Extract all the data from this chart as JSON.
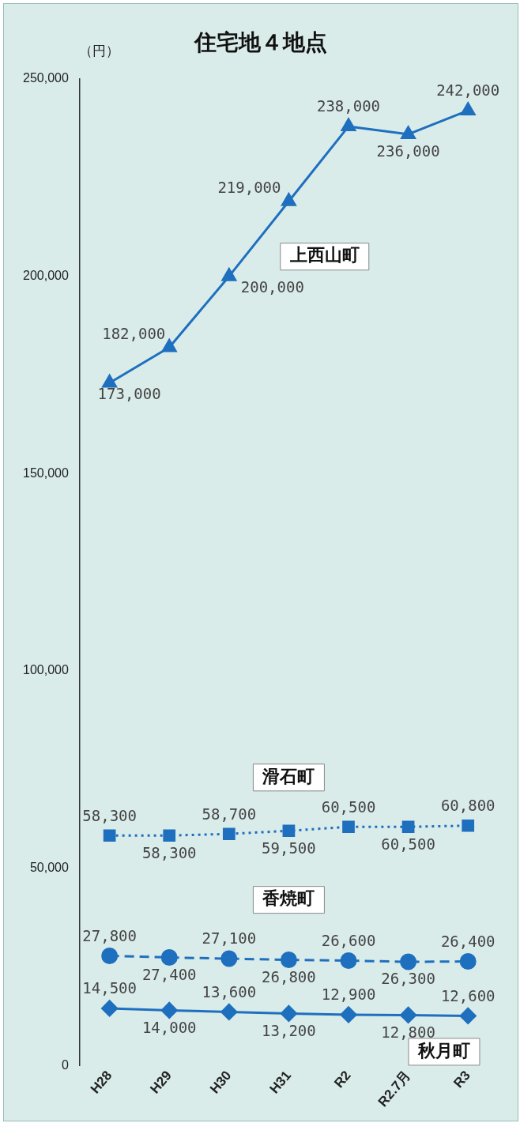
{
  "chart_data": {
    "type": "line",
    "title": "住宅地４地点",
    "ylabel": "（円）",
    "categories": [
      "H28",
      "H29",
      "H30",
      "H31",
      "R2",
      "R2.7月",
      "R3"
    ],
    "ylim": [
      0,
      250000
    ],
    "yticks": [
      {
        "value": 0,
        "label": "0"
      },
      {
        "value": 50000,
        "label": "50,000"
      },
      {
        "value": 100000,
        "label": "100,000"
      },
      {
        "value": 150000,
        "label": "150,000"
      },
      {
        "value": 200000,
        "label": "200,000"
      },
      {
        "value": 250000,
        "label": "250,000"
      }
    ],
    "grid": false,
    "legend": false,
    "series": [
      {
        "name": "上西山町",
        "color": "#1f6fbf",
        "marker": "triangle",
        "line_style": "solid",
        "values": [
          173000,
          182000,
          200000,
          219000,
          238000,
          236000,
          242000
        ],
        "value_labels": [
          "173,000",
          "182,000",
          "200,000",
          "219,000",
          "238,000",
          "236,000",
          "242,000"
        ]
      },
      {
        "name": "滑石町",
        "color": "#1f6fbf",
        "marker": "square",
        "line_style": "dotted",
        "values": [
          58300,
          58300,
          58700,
          59500,
          60500,
          60500,
          60800
        ],
        "value_labels": [
          "58,300",
          "58,300",
          "58,700",
          "59,500",
          "60,500",
          "60,500",
          "60,800"
        ]
      },
      {
        "name": "香焼町",
        "color": "#1f6fbf",
        "marker": "circle",
        "line_style": "dashed",
        "values": [
          27800,
          27400,
          27100,
          26800,
          26600,
          26300,
          26400
        ],
        "value_labels": [
          "27,800",
          "27,400",
          "27,100",
          "26,800",
          "26,600",
          "26,300",
          "26,400"
        ]
      },
      {
        "name": "秋月町",
        "color": "#1f6fbf",
        "marker": "diamond",
        "line_style": "solid",
        "values": [
          14500,
          14000,
          13600,
          13200,
          12900,
          12800,
          12600
        ],
        "value_labels": [
          "14,500",
          "14,000",
          "13,600",
          "13,200",
          "12,900",
          "12,800",
          "12,600"
        ]
      }
    ]
  }
}
